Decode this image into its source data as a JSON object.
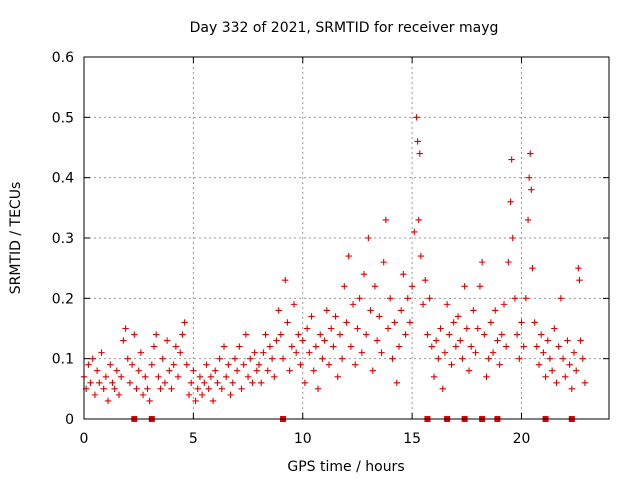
{
  "chart_data": {
    "type": "scatter",
    "title": "Day 332 of 2021, SRMTID for receiver mayg",
    "xlabel": "GPS time / hours",
    "ylabel": "SRMTID / TECUs",
    "xlim": [
      0,
      24
    ],
    "ylim": [
      0,
      0.6
    ],
    "xticks": [
      "0",
      "5",
      "10",
      "15",
      "20"
    ],
    "xtick_values": [
      0,
      5,
      10,
      15,
      20
    ],
    "yticks": [
      "0",
      "0.1",
      "0.2",
      "0.3",
      "0.4",
      "0.5",
      "0.6"
    ],
    "ytick_values": [
      0,
      0.1,
      0.2,
      0.3,
      0.4,
      0.5,
      0.6
    ],
    "grid": true,
    "color": "#e00000",
    "marker": "+",
    "series": [
      {
        "name": "SRMTID",
        "points": [
          [
            0.0,
            0.07
          ],
          [
            0.1,
            0.05
          ],
          [
            0.2,
            0.09
          ],
          [
            0.3,
            0.06
          ],
          [
            0.4,
            0.1
          ],
          [
            0.5,
            0.04
          ],
          [
            0.6,
            0.08
          ],
          [
            0.7,
            0.06
          ],
          [
            0.8,
            0.11
          ],
          [
            0.9,
            0.05
          ],
          [
            1.0,
            0.07
          ],
          [
            1.1,
            0.03
          ],
          [
            1.2,
            0.09
          ],
          [
            1.3,
            0.06
          ],
          [
            1.4,
            0.05
          ],
          [
            1.5,
            0.08
          ],
          [
            1.6,
            0.04
          ],
          [
            1.7,
            0.07
          ],
          [
            1.8,
            0.13
          ],
          [
            1.9,
            0.15
          ],
          [
            2.0,
            0.1
          ],
          [
            2.1,
            0.06
          ],
          [
            2.2,
            0.09
          ],
          [
            2.3,
            0.14
          ],
          [
            2.4,
            0.05
          ],
          [
            2.5,
            0.08
          ],
          [
            2.6,
            0.11
          ],
          [
            2.7,
            0.04
          ],
          [
            2.8,
            0.07
          ],
          [
            2.9,
            0.05
          ],
          [
            3.0,
            0.03
          ],
          [
            3.1,
            0.09
          ],
          [
            3.2,
            0.12
          ],
          [
            3.3,
            0.14
          ],
          [
            3.4,
            0.07
          ],
          [
            3.5,
            0.05
          ],
          [
            3.6,
            0.1
          ],
          [
            3.7,
            0.06
          ],
          [
            3.8,
            0.13
          ],
          [
            3.9,
            0.08
          ],
          [
            4.0,
            0.05
          ],
          [
            4.1,
            0.09
          ],
          [
            4.2,
            0.12
          ],
          [
            4.3,
            0.07
          ],
          [
            4.4,
            0.11
          ],
          [
            4.5,
            0.14
          ],
          [
            4.6,
            0.16
          ],
          [
            4.7,
            0.09
          ],
          [
            4.8,
            0.04
          ],
          [
            4.9,
            0.06
          ],
          [
            5.0,
            0.08
          ],
          [
            5.1,
            0.03
          ],
          [
            5.2,
            0.05
          ],
          [
            5.3,
            0.07
          ],
          [
            5.4,
            0.04
          ],
          [
            5.5,
            0.06
          ],
          [
            5.6,
            0.09
          ],
          [
            5.7,
            0.05
          ],
          [
            5.8,
            0.07
          ],
          [
            5.9,
            0.03
          ],
          [
            6.0,
            0.08
          ],
          [
            6.1,
            0.06
          ],
          [
            6.2,
            0.1
          ],
          [
            6.3,
            0.05
          ],
          [
            6.4,
            0.12
          ],
          [
            6.5,
            0.07
          ],
          [
            6.6,
            0.09
          ],
          [
            6.7,
            0.04
          ],
          [
            6.8,
            0.06
          ],
          [
            6.9,
            0.1
          ],
          [
            7.0,
            0.08
          ],
          [
            7.1,
            0.12
          ],
          [
            7.2,
            0.05
          ],
          [
            7.3,
            0.09
          ],
          [
            7.4,
            0.14
          ],
          [
            7.5,
            0.07
          ],
          [
            7.6,
            0.1
          ],
          [
            7.7,
            0.06
          ],
          [
            7.8,
            0.11
          ],
          [
            7.9,
            0.08
          ],
          [
            8.0,
            0.09
          ],
          [
            8.1,
            0.06
          ],
          [
            8.2,
            0.11
          ],
          [
            8.3,
            0.14
          ],
          [
            8.4,
            0.08
          ],
          [
            8.5,
            0.12
          ],
          [
            8.6,
            0.1
          ],
          [
            8.7,
            0.07
          ],
          [
            8.8,
            0.13
          ],
          [
            8.9,
            0.18
          ],
          [
            9.0,
            0.14
          ],
          [
            9.1,
            0.1
          ],
          [
            9.2,
            0.23
          ],
          [
            9.3,
            0.16
          ],
          [
            9.4,
            0.08
          ],
          [
            9.5,
            0.12
          ],
          [
            9.6,
            0.19
          ],
          [
            9.7,
            0.11
          ],
          [
            9.8,
            0.14
          ],
          [
            9.9,
            0.09
          ],
          [
            10.0,
            0.13
          ],
          [
            10.1,
            0.06
          ],
          [
            10.2,
            0.15
          ],
          [
            10.3,
            0.11
          ],
          [
            10.4,
            0.17
          ],
          [
            10.5,
            0.08
          ],
          [
            10.6,
            0.12
          ],
          [
            10.7,
            0.05
          ],
          [
            10.8,
            0.14
          ],
          [
            10.9,
            0.1
          ],
          [
            11.0,
            0.13
          ],
          [
            11.1,
            0.18
          ],
          [
            11.2,
            0.09
          ],
          [
            11.3,
            0.15
          ],
          [
            11.4,
            0.12
          ],
          [
            11.5,
            0.17
          ],
          [
            11.6,
            0.07
          ],
          [
            11.7,
            0.14
          ],
          [
            11.8,
            0.1
          ],
          [
            11.9,
            0.22
          ],
          [
            12.0,
            0.16
          ],
          [
            12.1,
            0.27
          ],
          [
            12.2,
            0.12
          ],
          [
            12.3,
            0.19
          ],
          [
            12.4,
            0.09
          ],
          [
            12.5,
            0.15
          ],
          [
            12.6,
            0.2
          ],
          [
            12.7,
            0.11
          ],
          [
            12.8,
            0.24
          ],
          [
            12.9,
            0.14
          ],
          [
            13.0,
            0.3
          ],
          [
            13.1,
            0.18
          ],
          [
            13.2,
            0.08
          ],
          [
            13.3,
            0.22
          ],
          [
            13.4,
            0.13
          ],
          [
            13.5,
            0.17
          ],
          [
            13.6,
            0.11
          ],
          [
            13.7,
            0.26
          ],
          [
            13.8,
            0.33
          ],
          [
            13.9,
            0.15
          ],
          [
            14.0,
            0.2
          ],
          [
            14.1,
            0.1
          ],
          [
            14.2,
            0.16
          ],
          [
            14.3,
            0.06
          ],
          [
            14.4,
            0.12
          ],
          [
            14.5,
            0.18
          ],
          [
            14.6,
            0.24
          ],
          [
            14.7,
            0.14
          ],
          [
            14.8,
            0.2
          ],
          [
            14.9,
            0.16
          ],
          [
            15.0,
            0.22
          ],
          [
            15.1,
            0.31
          ],
          [
            15.2,
            0.5
          ],
          [
            15.25,
            0.46
          ],
          [
            15.3,
            0.33
          ],
          [
            15.35,
            0.44
          ],
          [
            15.4,
            0.27
          ],
          [
            15.5,
            0.19
          ],
          [
            15.6,
            0.23
          ],
          [
            15.7,
            0.14
          ],
          [
            15.8,
            0.2
          ],
          [
            15.9,
            0.12
          ],
          [
            16.0,
            0.07
          ],
          [
            16.1,
            0.13
          ],
          [
            16.2,
            0.1
          ],
          [
            16.3,
            0.15
          ],
          [
            16.4,
            0.05
          ],
          [
            16.5,
            0.11
          ],
          [
            16.6,
            0.19
          ],
          [
            16.7,
            0.14
          ],
          [
            16.8,
            0.09
          ],
          [
            16.9,
            0.16
          ],
          [
            17.0,
            0.12
          ],
          [
            17.1,
            0.17
          ],
          [
            17.2,
            0.13
          ],
          [
            17.3,
            0.1
          ],
          [
            17.4,
            0.22
          ],
          [
            17.5,
            0.15
          ],
          [
            17.6,
            0.08
          ],
          [
            17.7,
            0.12
          ],
          [
            17.8,
            0.18
          ],
          [
            17.9,
            0.11
          ],
          [
            18.0,
            0.15
          ],
          [
            18.1,
            0.22
          ],
          [
            18.2,
            0.26
          ],
          [
            18.3,
            0.14
          ],
          [
            18.4,
            0.07
          ],
          [
            18.5,
            0.1
          ],
          [
            18.6,
            0.16
          ],
          [
            18.7,
            0.11
          ],
          [
            18.8,
            0.18
          ],
          [
            18.9,
            0.13
          ],
          [
            19.0,
            0.09
          ],
          [
            19.1,
            0.14
          ],
          [
            19.2,
            0.19
          ],
          [
            19.3,
            0.12
          ],
          [
            19.4,
            0.26
          ],
          [
            19.5,
            0.36
          ],
          [
            19.55,
            0.43
          ],
          [
            19.6,
            0.3
          ],
          [
            19.7,
            0.2
          ],
          [
            19.8,
            0.14
          ],
          [
            19.9,
            0.1
          ],
          [
            20.0,
            0.16
          ],
          [
            20.1,
            0.12
          ],
          [
            20.2,
            0.2
          ],
          [
            20.3,
            0.33
          ],
          [
            20.35,
            0.4
          ],
          [
            20.4,
            0.44
          ],
          [
            20.45,
            0.38
          ],
          [
            20.5,
            0.25
          ],
          [
            20.6,
            0.16
          ],
          [
            20.7,
            0.12
          ],
          [
            20.8,
            0.09
          ],
          [
            20.9,
            0.14
          ],
          [
            21.0,
            0.11
          ],
          [
            21.1,
            0.07
          ],
          [
            21.2,
            0.13
          ],
          [
            21.3,
            0.1
          ],
          [
            21.4,
            0.08
          ],
          [
            21.5,
            0.15
          ],
          [
            21.6,
            0.06
          ],
          [
            21.7,
            0.12
          ],
          [
            21.8,
            0.2
          ],
          [
            21.9,
            0.1
          ],
          [
            22.0,
            0.07
          ],
          [
            22.1,
            0.13
          ],
          [
            22.2,
            0.09
          ],
          [
            22.3,
            0.05
          ],
          [
            22.4,
            0.11
          ],
          [
            22.5,
            0.08
          ],
          [
            22.6,
            0.25
          ],
          [
            22.65,
            0.23
          ],
          [
            22.7,
            0.13
          ],
          [
            22.8,
            0.1
          ],
          [
            22.9,
            0.06
          ]
        ]
      }
    ],
    "baseline_markers": [
      2.3,
      3.1,
      9.1,
      15.7,
      16.6,
      17.4,
      18.2,
      18.9,
      21.1,
      22.3
    ]
  }
}
